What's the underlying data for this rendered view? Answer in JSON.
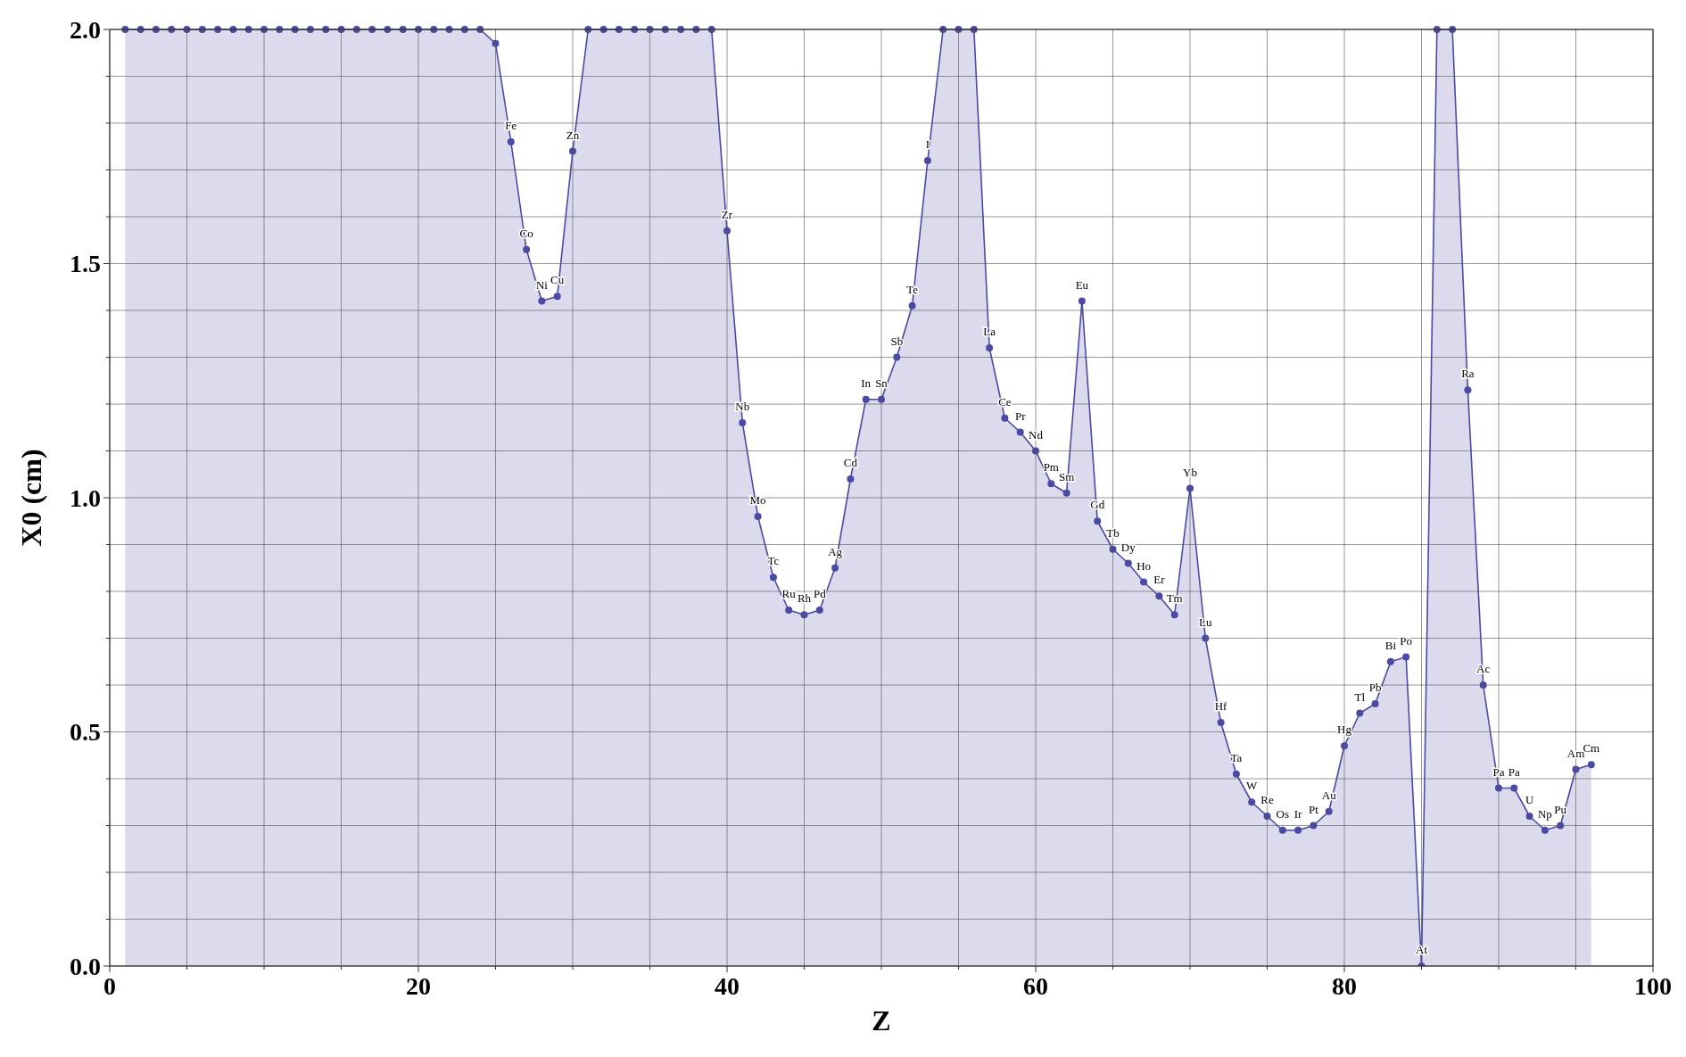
{
  "chart_data": {
    "type": "area",
    "xlabel": "Z",
    "ylabel": "X0 (cm)",
    "x": [
      1,
      2,
      3,
      4,
      5,
      6,
      7,
      8,
      9,
      10,
      11,
      12,
      13,
      14,
      15,
      16,
      17,
      18,
      19,
      20,
      21,
      22,
      23,
      24,
      25,
      26,
      27,
      28,
      29,
      30,
      31,
      32,
      33,
      34,
      35,
      36,
      37,
      38,
      39,
      40,
      41,
      42,
      43,
      44,
      45,
      46,
      47,
      48,
      49,
      50,
      51,
      52,
      53,
      54,
      55,
      56,
      57,
      58,
      59,
      60,
      61,
      62,
      63,
      64,
      65,
      66,
      67,
      68,
      69,
      70,
      71,
      72,
      73,
      74,
      75,
      76,
      77,
      78,
      79,
      80,
      81,
      82,
      83,
      84,
      85,
      86,
      87,
      88,
      89,
      90,
      91,
      92,
      93,
      94,
      95,
      96
    ],
    "series": [
      {
        "color": "#4a4aa6",
        "values": [
          2,
          2,
          2,
          2,
          2,
          2,
          2,
          2,
          2,
          2,
          2,
          2,
          2,
          2,
          2,
          2,
          2,
          2,
          2,
          2,
          2,
          2,
          2,
          2,
          1.97,
          1.76,
          1.53,
          1.42,
          1.43,
          1.74,
          2,
          2,
          2,
          2,
          2,
          2,
          2,
          2,
          2,
          1.57,
          1.16,
          0.96,
          0.83,
          0.76,
          0.75,
          0.76,
          0.85,
          1.04,
          1.21,
          1.21,
          1.3,
          1.41,
          1.72,
          2,
          2,
          2,
          1.32,
          1.17,
          1.14,
          1.1,
          1.03,
          1.01,
          1.42,
          0.95,
          0.89,
          0.86,
          0.82,
          0.79,
          0.75,
          1.02,
          0.7,
          0.52,
          0.41,
          0.35,
          0.32,
          0.29,
          0.29,
          0.3,
          0.33,
          0.47,
          0.54,
          0.56,
          0.65,
          0.66,
          0,
          2,
          2,
          1.23,
          0.6,
          0.38,
          0.38,
          0.32,
          0.29,
          0.3,
          0.42,
          0.43
        ]
      }
    ],
    "xlim": [
      0,
      100
    ],
    "xticks": [
      0,
      {
        "value": 5,
        "label": null
      },
      {
        "value": 10,
        "label": null
      },
      {
        "value": 15,
        "label": null
      },
      20,
      {
        "value": 25,
        "label": null
      },
      {
        "value": 30,
        "label": null
      },
      {
        "value": 35,
        "label": null
      },
      40,
      {
        "value": 45,
        "label": null
      },
      {
        "value": 50,
        "label": null
      },
      {
        "value": 55,
        "label": null
      },
      60,
      {
        "value": 65,
        "label": null
      },
      {
        "value": 70,
        "label": null
      },
      {
        "value": 75,
        "label": null
      },
      80,
      {
        "value": 85,
        "label": null
      },
      {
        "value": 90,
        "label": null
      },
      {
        "value": 95,
        "label": null
      },
      100
    ],
    "ylim": [
      0,
      2
    ],
    "yticks": [
      {
        "value": 0,
        "label": "0.0"
      },
      {
        "value": 0.1,
        "label": null
      },
      {
        "value": 0.2,
        "label": null
      },
      {
        "value": 0.3,
        "label": null
      },
      {
        "value": 0.4,
        "label": null
      },
      {
        "value": 0.5,
        "label": "0.5"
      },
      {
        "value": 0.6,
        "label": null
      },
      {
        "value": 0.7,
        "label": null
      },
      {
        "value": 0.8,
        "label": null
      },
      {
        "value": 0.9,
        "label": null
      },
      {
        "value": 1,
        "label": "1.0"
      },
      {
        "value": 1.1,
        "label": null
      },
      {
        "value": 1.2,
        "label": null
      },
      {
        "value": 1.3,
        "label": null
      },
      {
        "value": 1.4,
        "label": null
      },
      {
        "value": 1.5,
        "label": "1.5"
      },
      {
        "value": 1.6,
        "label": null
      },
      {
        "value": 1.7,
        "label": null
      },
      {
        "value": 1.8,
        "label": null
      },
      {
        "value": 1.9,
        "label": null
      },
      {
        "value": 2,
        "label": "2.0"
      }
    ],
    "grid": true,
    "marker": "circle",
    "annotations": [
      {
        "text": "Fe",
        "x": 26,
        "y": 1.76
      },
      {
        "text": "Co",
        "x": 27,
        "y": 1.53
      },
      {
        "text": "Ni",
        "x": 28,
        "y": 1.42
      },
      {
        "text": "Cu",
        "x": 29,
        "y": 1.43
      },
      {
        "text": "Zn",
        "x": 30,
        "y": 1.74
      },
      {
        "text": "Zr",
        "x": 40,
        "y": 1.57
      },
      {
        "text": "Nb",
        "x": 41,
        "y": 1.16
      },
      {
        "text": "Mo",
        "x": 42,
        "y": 0.96
      },
      {
        "text": "Tc",
        "x": 43,
        "y": 0.83
      },
      {
        "text": "Ru",
        "x": 44,
        "y": 0.76
      },
      {
        "text": "Rh",
        "x": 45,
        "y": 0.75
      },
      {
        "text": "Pd",
        "x": 46,
        "y": 0.76
      },
      {
        "text": "Ag",
        "x": 47,
        "y": 0.85
      },
      {
        "text": "Cd",
        "x": 48,
        "y": 1.04
      },
      {
        "text": "In",
        "x": 49,
        "y": 1.21
      },
      {
        "text": "Sn",
        "x": 50,
        "y": 1.21
      },
      {
        "text": "Sb",
        "x": 51,
        "y": 1.3
      },
      {
        "text": "Te",
        "x": 52,
        "y": 1.41
      },
      {
        "text": "I",
        "x": 53,
        "y": 1.72
      },
      {
        "text": "La",
        "x": 57,
        "y": 1.32
      },
      {
        "text": "Ce",
        "x": 58,
        "y": 1.17
      },
      {
        "text": "Pr",
        "x": 59,
        "y": 1.14
      },
      {
        "text": "Nd",
        "x": 60,
        "y": 1.1
      },
      {
        "text": "Pm",
        "x": 61,
        "y": 1.03
      },
      {
        "text": "Sm",
        "x": 62,
        "y": 1.01
      },
      {
        "text": "Eu",
        "x": 63,
        "y": 1.42
      },
      {
        "text": "Gd",
        "x": 64,
        "y": 0.95
      },
      {
        "text": "Tb",
        "x": 65,
        "y": 0.89
      },
      {
        "text": "Dy",
        "x": 66,
        "y": 0.86
      },
      {
        "text": "Ho",
        "x": 67,
        "y": 0.82
      },
      {
        "text": "Er",
        "x": 68,
        "y": 0.79
      },
      {
        "text": "Tm",
        "x": 69,
        "y": 0.75
      },
      {
        "text": "Yb",
        "x": 70,
        "y": 1.02
      },
      {
        "text": "Lu",
        "x": 71,
        "y": 0.7
      },
      {
        "text": "Hf",
        "x": 72,
        "y": 0.52
      },
      {
        "text": "Ta",
        "x": 73,
        "y": 0.41
      },
      {
        "text": "W",
        "x": 74,
        "y": 0.35
      },
      {
        "text": "Re",
        "x": 75,
        "y": 0.32
      },
      {
        "text": "Os",
        "x": 76,
        "y": 0.29
      },
      {
        "text": "Ir",
        "x": 77,
        "y": 0.29
      },
      {
        "text": "Pt",
        "x": 78,
        "y": 0.3
      },
      {
        "text": "Au",
        "x": 79,
        "y": 0.33
      },
      {
        "text": "Hg",
        "x": 80,
        "y": 0.47
      },
      {
        "text": "Tl",
        "x": 81,
        "y": 0.54
      },
      {
        "text": "Pb",
        "x": 82,
        "y": 0.56
      },
      {
        "text": "Bi",
        "x": 83,
        "y": 0.65
      },
      {
        "text": "Po",
        "x": 84,
        "y": 0.66
      },
      {
        "text": "At",
        "x": 85,
        "y": 0
      },
      {
        "text": "Ra",
        "x": 88,
        "y": 1.23
      },
      {
        "text": "Ac",
        "x": 89,
        "y": 0.6
      },
      {
        "text": "Pa",
        "x": 90,
        "y": 0.38
      },
      {
        "text": "Pa",
        "x": 91,
        "y": 0.38
      },
      {
        "text": "U",
        "x": 92,
        "y": 0.32
      },
      {
        "text": "Np",
        "x": 93,
        "y": 0.29
      },
      {
        "text": "Pu",
        "x": 94,
        "y": 0.3
      },
      {
        "text": "Am",
        "x": 95,
        "y": 0.42
      },
      {
        "text": "Cm",
        "x": 96,
        "y": 0.43
      }
    ]
  }
}
